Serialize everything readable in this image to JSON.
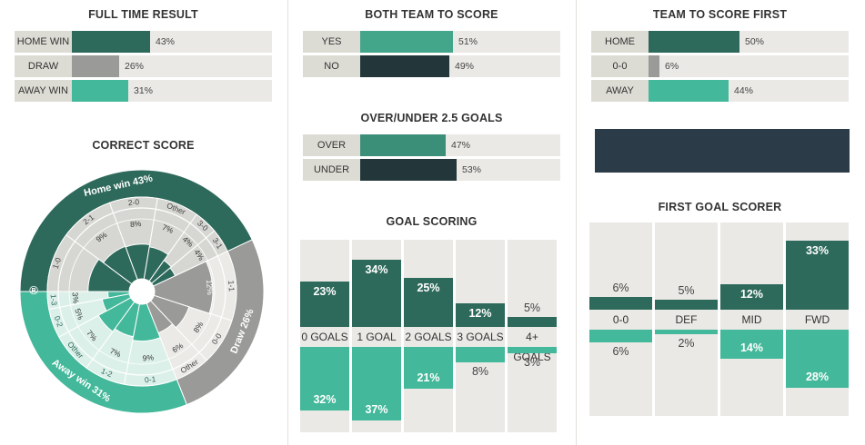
{
  "colors": {
    "dark_green": "#2e6a5b",
    "teal": "#43b89a",
    "gray": "#9a9a98",
    "navy": "#23373a",
    "label_bg": "#dddcd4",
    "bar_bg": "#ebe9e6"
  },
  "full_time": {
    "title": "FULL TIME RESULT",
    "rows": [
      {
        "label": "HOME WIN",
        "value": 43,
        "text": "43%",
        "color": "#2e6a5b"
      },
      {
        "label": "DRAW",
        "value": 26,
        "text": "26%",
        "color": "#9a9a98"
      },
      {
        "label": "AWAY WIN",
        "value": 31,
        "text": "31%",
        "color": "#43b89a"
      }
    ]
  },
  "btts": {
    "title": "BOTH TEAM TO SCORE",
    "rows": [
      {
        "label": "YES",
        "value": 51,
        "text": "51%",
        "color": "#43a58a"
      },
      {
        "label": "NO",
        "value": 49,
        "text": "49%",
        "color": "#23373a"
      }
    ]
  },
  "over_under": {
    "title": "OVER/UNDER 2.5 GOALS",
    "rows": [
      {
        "label": "OVER",
        "value": 47,
        "text": "47%",
        "color": "#3b8f79"
      },
      {
        "label": "UNDER",
        "value": 53,
        "text": "53%",
        "color": "#23373a"
      }
    ]
  },
  "first_team": {
    "title": "TEAM TO SCORE FIRST",
    "rows": [
      {
        "label": "HOME",
        "value": 50,
        "text": "50%",
        "color": "#2e6a5b"
      },
      {
        "label": "0-0",
        "value": 6,
        "text": "6%",
        "color": "#9a9a98"
      },
      {
        "label": "AWAY",
        "value": 44,
        "text": "44%",
        "color": "#43b89a"
      }
    ]
  },
  "correct_score": {
    "title": "CORRECT SCORE",
    "outer": [
      {
        "label": "Home win 43%",
        "value": 43
      },
      {
        "label": "Draw 26%",
        "value": 26
      },
      {
        "label": "Away win 31%",
        "value": 31
      }
    ],
    "brand": "®",
    "slices": [
      {
        "score": "1-0",
        "pct": 10,
        "pct_text": "",
        "group": "home",
        "r": 0.58
      },
      {
        "score": "2-1",
        "pct": 9,
        "pct_text": "9%",
        "group": "home",
        "r": 0.5
      },
      {
        "score": "2-0",
        "pct": 8,
        "pct_text": "8%",
        "group": "home",
        "r": 0.49
      },
      {
        "score": "Other",
        "pct": 7,
        "pct_text": "7%",
        "group": "home",
        "r": 0.46
      },
      {
        "score": "3-0",
        "pct": 4,
        "pct_text": "4%",
        "group": "home",
        "r": 0.36
      },
      {
        "score": "3-1",
        "pct": 4,
        "pct_text": "4%",
        "group": "home",
        "r": 0.34
      },
      {
        "score": "1-1",
        "pct": 12,
        "pct_text": "12%",
        "group": "draw",
        "r": 0.82
      },
      {
        "score": "0-0",
        "pct": 8,
        "pct_text": "8%",
        "group": "draw",
        "r": 0.52
      },
      {
        "score": "Other",
        "pct": 6,
        "pct_text": "6%",
        "group": "draw",
        "r": 0.45
      },
      {
        "score": "0-1",
        "pct": 9,
        "pct_text": "9%",
        "group": "away",
        "r": 0.52
      },
      {
        "score": "1-2",
        "pct": 7,
        "pct_text": "7%",
        "group": "away",
        "r": 0.47
      },
      {
        "score": "Other",
        "pct": 7,
        "pct_text": "7%",
        "group": "away",
        "r": 0.52
      },
      {
        "score": "0-2",
        "pct": 5,
        "pct_text": "5%",
        "group": "away",
        "r": 0.39
      },
      {
        "score": "1-3",
        "pct": 3,
        "pct_text": "3%",
        "group": "away",
        "r": 0.3
      }
    ]
  },
  "goal_scoring": {
    "title": "GOAL SCORING",
    "categories": [
      "0 GOALS",
      "1 GOAL",
      "2 GOALS",
      "3 GOALS",
      "4+ GOALS"
    ],
    "home": [
      23,
      34,
      25,
      12,
      5
    ],
    "home_text": [
      "23%",
      "34%",
      "25%",
      "12%",
      "5%"
    ],
    "away": [
      32,
      37,
      21,
      8,
      3
    ],
    "away_text": [
      "32%",
      "37%",
      "21%",
      "8%",
      "3%"
    ]
  },
  "first_goal_scorer": {
    "title": "FIRST GOAL SCORER",
    "categories": [
      "0-0",
      "DEF",
      "MID",
      "FWD"
    ],
    "home": [
      6,
      5,
      12,
      33
    ],
    "home_text": [
      "6%",
      "5%",
      "12%",
      "33%"
    ],
    "away": [
      6,
      2,
      14,
      28
    ],
    "away_text": [
      "6%",
      "2%",
      "14%",
      "28%"
    ]
  },
  "chart_data": [
    {
      "type": "bar",
      "title": "FULL TIME RESULT",
      "categories": [
        "HOME WIN",
        "DRAW",
        "AWAY WIN"
      ],
      "values": [
        43,
        26,
        31
      ]
    },
    {
      "type": "bar",
      "title": "BOTH TEAM TO SCORE",
      "categories": [
        "YES",
        "NO"
      ],
      "values": [
        51,
        49
      ]
    },
    {
      "type": "bar",
      "title": "OVER/UNDER 2.5 GOALS",
      "categories": [
        "OVER",
        "UNDER"
      ],
      "values": [
        47,
        53
      ]
    },
    {
      "type": "bar",
      "title": "TEAM TO SCORE FIRST",
      "categories": [
        "HOME",
        "0-0",
        "AWAY"
      ],
      "values": [
        50,
        6,
        44
      ]
    },
    {
      "type": "pie",
      "title": "CORRECT SCORE",
      "categories": [
        "1-0",
        "2-1",
        "2-0",
        "Other",
        "3-0",
        "3-1",
        "1-1",
        "0-0",
        "Other",
        "0-1",
        "1-2",
        "Other",
        "0-2",
        "1-3"
      ],
      "values": [
        null,
        9,
        8,
        7,
        4,
        4,
        12,
        8,
        6,
        9,
        7,
        7,
        5,
        3
      ],
      "groups": [
        {
          "name": "Home win",
          "value": 43
        },
        {
          "name": "Draw",
          "value": 26
        },
        {
          "name": "Away win",
          "value": 31
        }
      ]
    },
    {
      "type": "bar",
      "title": "GOAL SCORING",
      "categories": [
        "0 GOALS",
        "1 GOAL",
        "2 GOALS",
        "3 GOALS",
        "4+ GOALS"
      ],
      "series": [
        {
          "values": [
            23,
            34,
            25,
            12,
            5
          ]
        },
        {
          "values": [
            32,
            37,
            21,
            8,
            3
          ]
        }
      ]
    },
    {
      "type": "bar",
      "title": "FIRST GOAL SCORER",
      "categories": [
        "0-0",
        "DEF",
        "MID",
        "FWD"
      ],
      "series": [
        {
          "values": [
            6,
            5,
            12,
            33
          ]
        },
        {
          "values": [
            6,
            2,
            14,
            28
          ]
        }
      ]
    }
  ]
}
